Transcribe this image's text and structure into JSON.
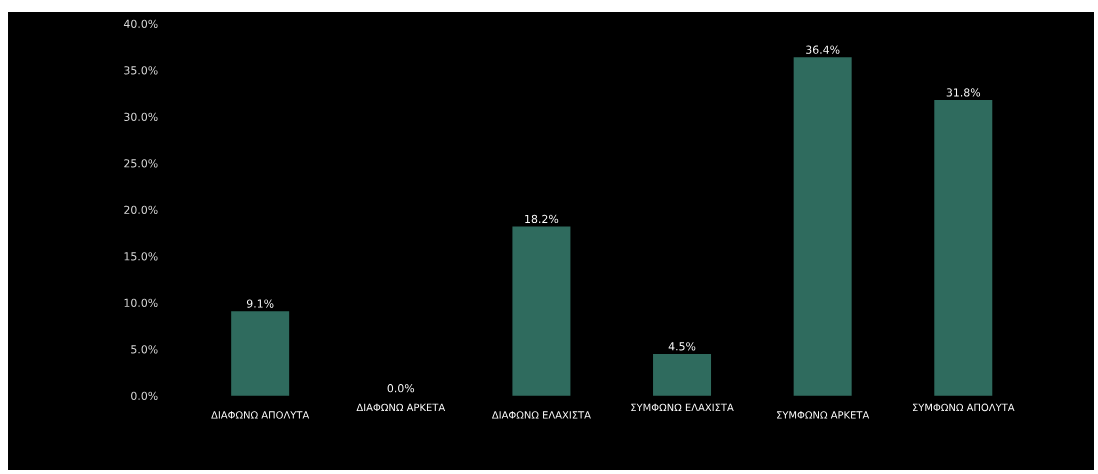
{
  "chart_data": {
    "type": "bar",
    "categories": [
      "ΔΙΑΦΩΝΩ ΑΠΟΛΥΤΑ",
      "ΔΙΑΦΩΝΩ ΑΡΚΕΤΑ",
      "ΔΙΑΦΩΝΩ ΕΛΑΧΙΣΤΑ",
      "ΣΥΜΦΩΝΩ ΕΛΑΧΙΣΤΑ",
      "ΣΥΜΦΩΝΩ ΑΡΚΕΤΑ",
      "ΣΥΜΦΩΝΩ ΑΠΟΛΥΤΑ"
    ],
    "values": [
      9.1,
      0.0,
      18.2,
      4.5,
      36.4,
      31.8
    ],
    "value_labels": [
      "9.1%",
      "0.0%",
      "18.2%",
      "4.5%",
      "36.4%",
      "31.8%"
    ],
    "color": "#2f6b5e",
    "ylim": [
      0,
      40
    ],
    "yticks": [
      {
        "value": 0,
        "label": "0.0%"
      },
      {
        "value": 5,
        "label": "5.0%"
      },
      {
        "value": 10,
        "label": "10.0%"
      },
      {
        "value": 15,
        "label": "15.0%"
      },
      {
        "value": 20,
        "label": "20.0%"
      },
      {
        "value": 25,
        "label": "25.0%"
      },
      {
        "value": 30,
        "label": "30.0%"
      },
      {
        "value": 35,
        "label": "35.0%"
      },
      {
        "value": 40,
        "label": "40.0%"
      }
    ],
    "grid": false
  }
}
